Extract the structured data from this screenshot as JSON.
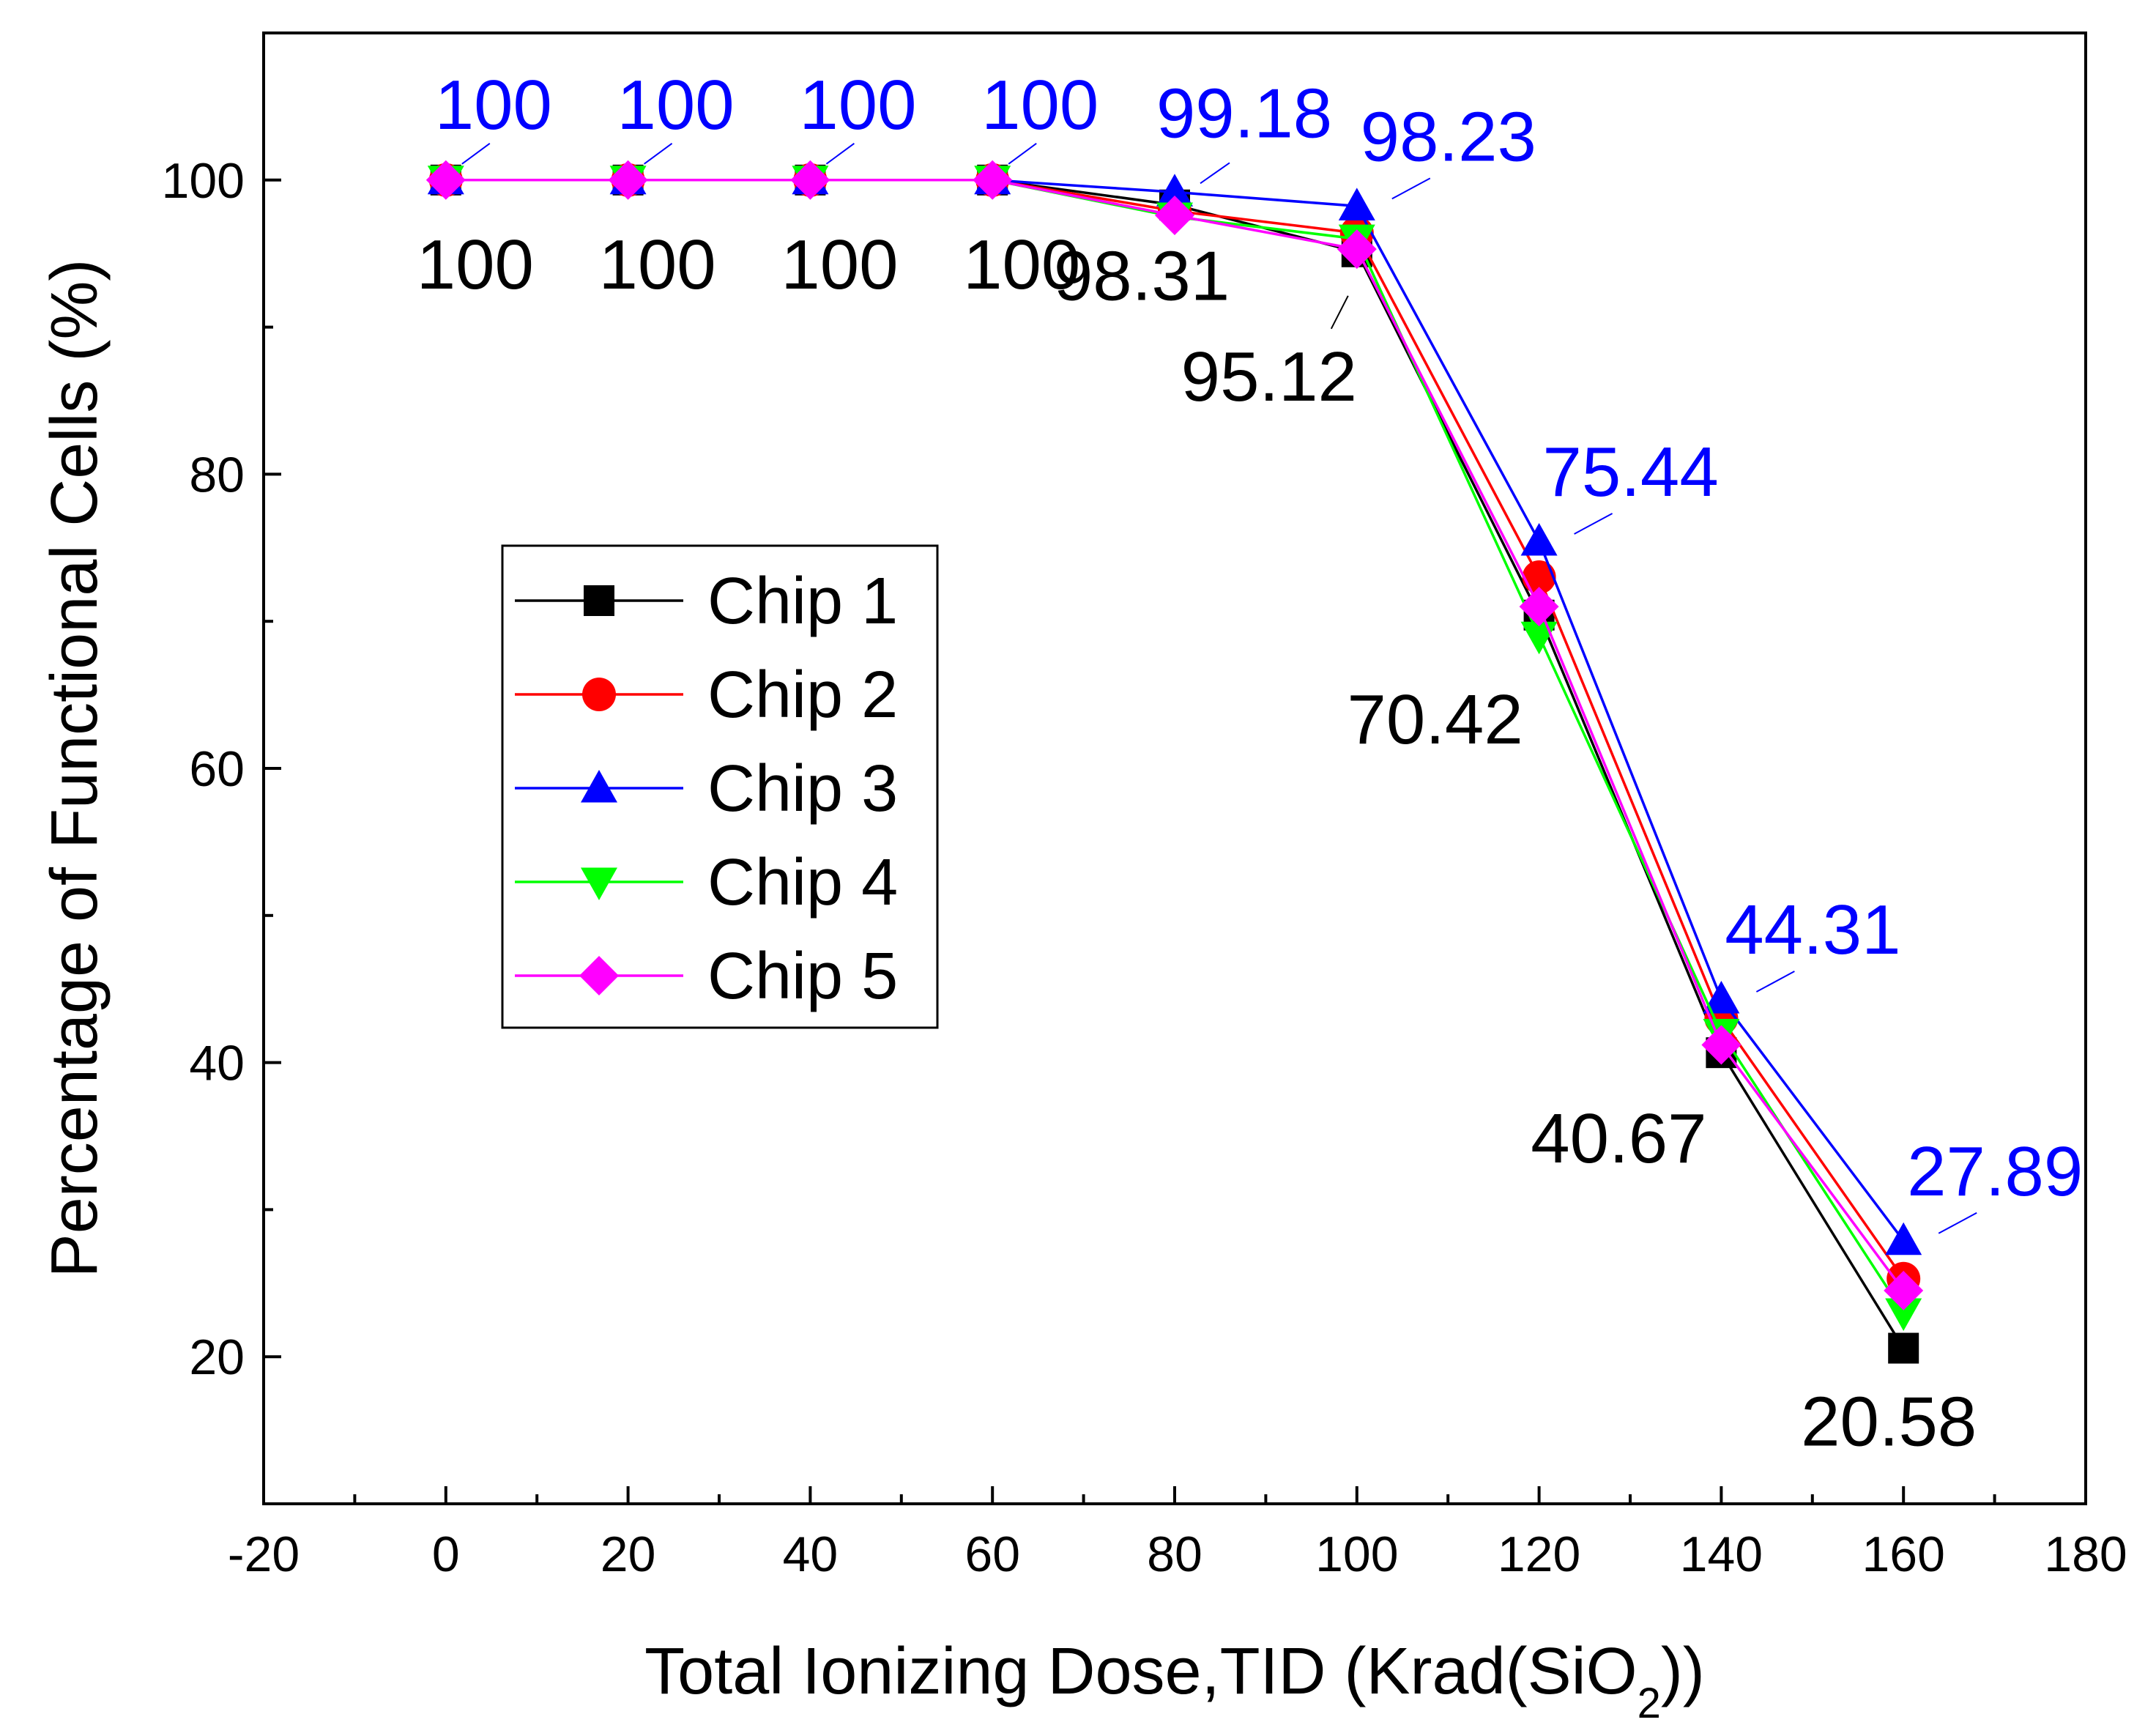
{
  "chart_data": {
    "type": "line",
    "title": "",
    "xlabel": {
      "main": "Total Ionizing Dose,TID (Krad(SiO",
      "sub": "2",
      "tail": "))"
    },
    "ylabel": "Percentage of Functional Cells (%)",
    "xlim": [
      -20,
      180
    ],
    "ylim": [
      10,
      110
    ],
    "xticks": [
      -20,
      0,
      20,
      40,
      60,
      80,
      100,
      120,
      140,
      160,
      180
    ],
    "yticks": [
      20,
      40,
      60,
      80,
      100
    ],
    "x": [
      0,
      20,
      40,
      60,
      80,
      100,
      120,
      140,
      160
    ],
    "series": [
      {
        "name": "Chip 1",
        "color": "#000000",
        "marker": "square",
        "values": [
          100,
          100,
          100,
          100,
          98.31,
          95.12,
          70.42,
          40.67,
          20.58
        ]
      },
      {
        "name": "Chip 2",
        "color": "#ff0000",
        "marker": "circle",
        "values": [
          100,
          100,
          100,
          100,
          97.9,
          96.4,
          73.0,
          43.0,
          25.3
        ]
      },
      {
        "name": "Chip 3",
        "color": "#0000ff",
        "marker": "triangle-up",
        "values": [
          100,
          100,
          100,
          100,
          99.18,
          98.23,
          75.44,
          44.31,
          27.89
        ]
      },
      {
        "name": "Chip 4",
        "color": "#00ff00",
        "marker": "triangle-down",
        "values": [
          100,
          100,
          100,
          100,
          97.5,
          96.0,
          69.0,
          42.0,
          23.0
        ]
      },
      {
        "name": "Chip 5",
        "color": "#ff00ff",
        "marker": "diamond",
        "values": [
          100,
          100,
          100,
          100,
          97.6,
          95.3,
          71.0,
          41.2,
          24.5
        ]
      }
    ],
    "annotations": [
      {
        "text": "100",
        "x": 0,
        "y": 100,
        "color": "#0000ff",
        "pos": "above"
      },
      {
        "text": "100",
        "x": 20,
        "y": 100,
        "color": "#0000ff",
        "pos": "above"
      },
      {
        "text": "100",
        "x": 40,
        "y": 100,
        "color": "#0000ff",
        "pos": "above"
      },
      {
        "text": "100",
        "x": 60,
        "y": 100,
        "color": "#0000ff",
        "pos": "above"
      },
      {
        "text": "99.18",
        "x": 80,
        "y": 99.18,
        "color": "#0000ff",
        "pos": "above"
      },
      {
        "text": "98.23",
        "x": 100,
        "y": 98.23,
        "color": "#0000ff",
        "pos": "above"
      },
      {
        "text": "75.44",
        "x": 120,
        "y": 75.44,
        "color": "#0000ff",
        "pos": "above"
      },
      {
        "text": "44.31",
        "x": 140,
        "y": 44.31,
        "color": "#0000ff",
        "pos": "above"
      },
      {
        "text": "27.89",
        "x": 160,
        "y": 27.89,
        "color": "#0000ff",
        "pos": "above"
      },
      {
        "text": "100",
        "x": 0,
        "y": 100,
        "color": "#000000",
        "pos": "below"
      },
      {
        "text": "100",
        "x": 20,
        "y": 100,
        "color": "#000000",
        "pos": "below"
      },
      {
        "text": "100",
        "x": 40,
        "y": 100,
        "color": "#000000",
        "pos": "below"
      },
      {
        "text": "100",
        "x": 60,
        "y": 100,
        "color": "#000000",
        "pos": "below"
      },
      {
        "text": "98.31",
        "x": 80,
        "y": 98.31,
        "color": "#000000",
        "pos": "below"
      },
      {
        "text": "95.12",
        "x": 100,
        "y": 95.12,
        "color": "#000000",
        "pos": "below"
      },
      {
        "text": "70.42",
        "x": 120,
        "y": 70.42,
        "color": "#000000",
        "pos": "below"
      },
      {
        "text": "40.67",
        "x": 140,
        "y": 40.67,
        "color": "#000000",
        "pos": "below"
      },
      {
        "text": "20.58",
        "x": 160,
        "y": 20.58,
        "color": "#000000",
        "pos": "below"
      }
    ],
    "legend": {
      "position": "center-left"
    },
    "grid": false
  }
}
